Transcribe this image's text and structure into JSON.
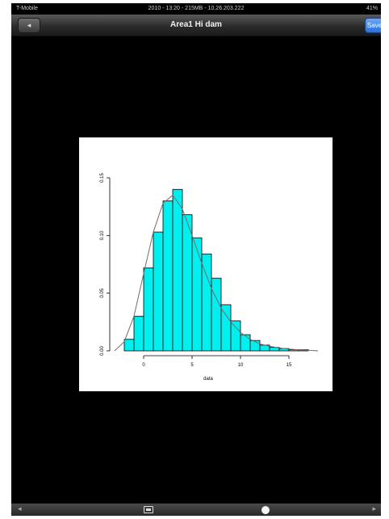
{
  "status_bar": {
    "carrier": "T-Mobile",
    "title": "2010 - 13:20 - 215MB - 10.26.203.222",
    "battery": "41%"
  },
  "nav": {
    "title": "Area1 Hi dam",
    "back_label": "◂",
    "action_label": "Save"
  },
  "toolbar": {
    "prev_label": "◂",
    "next_label": "▸"
  },
  "colors": {
    "bar_fill": "#00f0f0",
    "bar_stroke": "#000000",
    "curve": "#7a6a6a",
    "background": "#000000"
  },
  "chart_data": {
    "type": "bar",
    "subtype": "histogram",
    "bin_edges": [
      -3,
      -2,
      -1,
      0,
      1,
      2,
      3,
      4,
      5,
      6,
      7,
      8,
      9,
      10,
      11,
      12,
      13,
      14,
      15,
      16,
      17
    ],
    "values": [
      0.0,
      0.01,
      0.03,
      0.072,
      0.103,
      0.13,
      0.14,
      0.118,
      0.098,
      0.084,
      0.063,
      0.04,
      0.026,
      0.014,
      0.009,
      0.005,
      0.003,
      0.002,
      0.001,
      0.001
    ],
    "density_curve": {
      "x": [
        -3,
        -2,
        -1,
        0,
        1,
        2,
        3,
        4,
        5,
        6,
        7,
        8,
        9,
        10,
        11,
        12,
        13,
        14,
        15,
        16,
        17,
        18
      ],
      "y": [
        0.0,
        0.008,
        0.03,
        0.067,
        0.103,
        0.128,
        0.135,
        0.123,
        0.1,
        0.076,
        0.054,
        0.037,
        0.025,
        0.016,
        0.01,
        0.006,
        0.004,
        0.0025,
        0.0015,
        0.001,
        0.0005,
        0.0
      ]
    },
    "xlim": [
      -3,
      18
    ],
    "ylim": [
      0,
      0.15
    ],
    "x_ticks": [
      0,
      5,
      10,
      15
    ],
    "x_tick_labels": [
      "0",
      "5",
      "10",
      "15"
    ],
    "y_ticks": [
      0.0,
      0.05,
      0.1,
      0.15
    ],
    "y_tick_labels": [
      "0.00",
      "0.05",
      "0.10",
      "0.15"
    ],
    "xlabel": "data",
    "ylabel": "",
    "title": "",
    "grid": false,
    "legend": "none"
  }
}
